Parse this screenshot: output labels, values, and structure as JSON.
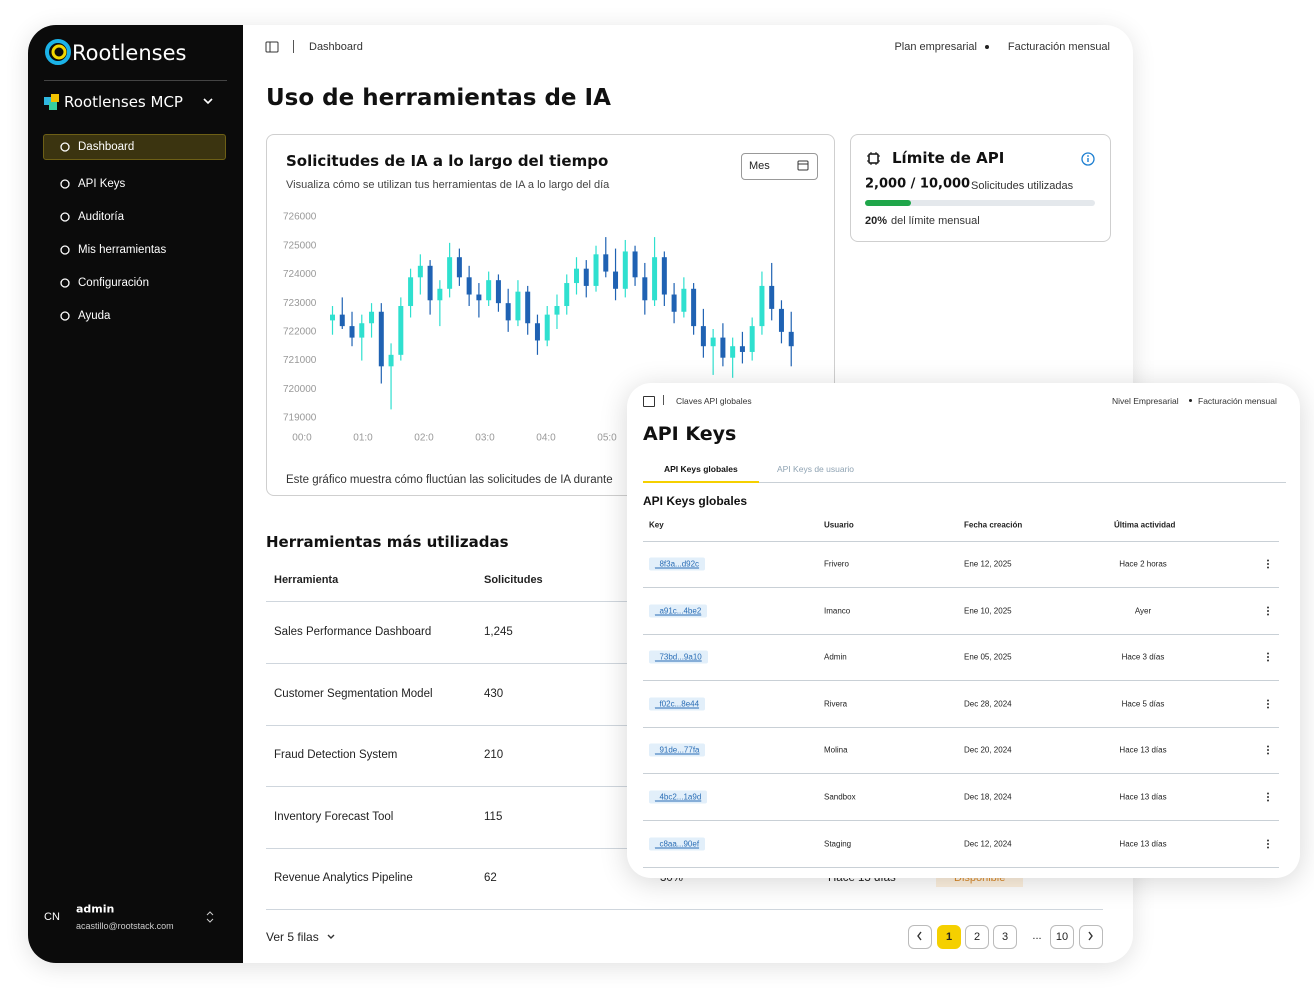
{
  "brand": {
    "name": "Rootlenses",
    "workspace": "Rootlenses MCP"
  },
  "sidebar": {
    "nav": [
      "Dashboard",
      "API Keys",
      "Auditoría",
      "Mis herramientas",
      "Configuración",
      "Ayuda"
    ],
    "user": {
      "initials": "CN",
      "name": "admin",
      "email": "acastillo@rootstack.com"
    }
  },
  "header": {
    "breadcrumb": "Dashboard",
    "plan": "Plan empresarial",
    "billing": "Facturación mensual",
    "title": "Uso de herramientas de IA"
  },
  "chart_card": {
    "period": "Mes"
  },
  "chart_data": {
    "type": "candlestick",
    "title": "Solicitudes de IA a lo largo del tiempo",
    "subtitle": "Visualiza cómo se utilizan tus herramientas de IA a lo largo del día",
    "note": "Este gráfico muestra cómo fluctúan las solicitudes de IA durante",
    "x": [
      0.5,
      0.66,
      0.82,
      0.98,
      1.14,
      1.3,
      1.46,
      1.62,
      1.78,
      1.94,
      2.1,
      2.26,
      2.42,
      2.58,
      2.74,
      2.9,
      3.06,
      3.22,
      3.38,
      3.54,
      3.7,
      3.86,
      4.02,
      4.18,
      4.34,
      4.5,
      4.66,
      4.82,
      4.98,
      5.14,
      5.3,
      5.46,
      5.62,
      5.78,
      5.94,
      6.1,
      6.26,
      6.42,
      6.58,
      6.74,
      6.9,
      7.06,
      7.22,
      7.38,
      7.54,
      7.7,
      7.86,
      8.02
    ],
    "open": [
      722400,
      722600,
      722200,
      721800,
      722300,
      722700,
      720800,
      721200,
      722900,
      723900,
      724300,
      723100,
      723500,
      724600,
      723900,
      723300,
      723100,
      723800,
      723000,
      722400,
      723400,
      722300,
      721700,
      722600,
      722900,
      723700,
      724200,
      723600,
      724700,
      724100,
      723500,
      724800,
      723900,
      723100,
      724600,
      723300,
      722700,
      723500,
      722200,
      721500,
      721800,
      721100,
      721500,
      721300,
      722200,
      723600,
      722800,
      722000
    ],
    "high": [
      722900,
      723200,
      722700,
      722600,
      723000,
      723000,
      721600,
      723200,
      724200,
      724700,
      724500,
      723800,
      725100,
      724900,
      724300,
      723700,
      724100,
      724000,
      723500,
      723800,
      723600,
      722600,
      722900,
      723300,
      724000,
      724600,
      724500,
      725000,
      725300,
      724900,
      725200,
      725000,
      724400,
      725300,
      724800,
      723700,
      723900,
      723700,
      722800,
      722100,
      722300,
      721800,
      722000,
      722500,
      724100,
      724400,
      723100,
      722700
    ],
    "low": [
      721900,
      722100,
      721500,
      721000,
      721800,
      720200,
      719300,
      721000,
      722500,
      723300,
      722600,
      722200,
      723200,
      723600,
      722900,
      722500,
      722900,
      722700,
      722000,
      722200,
      721900,
      721200,
      721500,
      722100,
      722600,
      723300,
      723200,
      723400,
      723900,
      723100,
      723200,
      723600,
      722600,
      722900,
      722900,
      722300,
      722500,
      721900,
      721100,
      720500,
      720800,
      720400,
      720900,
      721000,
      721900,
      722400,
      721600,
      720800
    ],
    "close": [
      722600,
      722200,
      721800,
      722300,
      722700,
      720800,
      721200,
      722900,
      723900,
      724300,
      723100,
      723500,
      724600,
      723900,
      723300,
      723100,
      723800,
      723000,
      722400,
      723400,
      722300,
      721700,
      722600,
      722900,
      723700,
      724200,
      723600,
      724700,
      724100,
      723500,
      724800,
      723900,
      723100,
      724600,
      723300,
      722700,
      723500,
      722200,
      721500,
      721800,
      721100,
      721500,
      721300,
      722200,
      723600,
      722800,
      722000,
      721500
    ],
    "up_color": "#2fe0cf",
    "down_color": "#1f62b3",
    "xlim": [
      0,
      8.3
    ],
    "xticks": [
      {
        "value": 0,
        "label": "00:0"
      },
      {
        "value": 1,
        "label": "01:0"
      },
      {
        "value": 2,
        "label": "02:0"
      },
      {
        "value": 3,
        "label": "03:0"
      },
      {
        "value": 4,
        "label": "04:0"
      },
      {
        "value": 5,
        "label": "05:0"
      }
    ],
    "ylim": [
      719000,
      726000
    ],
    "yticks": [
      719000,
      720000,
      721000,
      722000,
      723000,
      724000,
      725000,
      726000
    ],
    "grid": false
  },
  "api_limit": {
    "title": "Límite de API",
    "usage": "2,000 / 10,000",
    "usage_label": "Solicitudes utilizadas",
    "percent": 20,
    "percent_label": "20%",
    "percent_text": "del límite mensual",
    "bar_color": "#1fa64a"
  },
  "tools_table": {
    "title": "Herramientas más utilizadas",
    "headers": [
      "Herramienta",
      "Solicitudes"
    ],
    "rows": [
      [
        "Sales Performance Dashboard",
        "1,245"
      ],
      [
        "Customer Segmentation Model",
        "430"
      ],
      [
        "Fraud Detection System",
        "210"
      ],
      [
        "Inventory Forecast Tool",
        "115"
      ],
      [
        "Revenue Analytics Pipeline",
        "62",
        "30%",
        "Hace 13 días",
        "Disponible"
      ]
    ],
    "page_size_label": "Ver 5 filas",
    "pages": [
      "1",
      "2",
      "3",
      "...",
      "10"
    ]
  },
  "api_keys_panel": {
    "breadcrumb": "Claves API globales",
    "plan": "Nivel Empresarial",
    "billing": "Facturación mensual",
    "title": "API Keys",
    "tabs": [
      "API Keys globales",
      "API Keys de usuario"
    ],
    "section": "API Keys globales",
    "headers": [
      "Key",
      "Usuario",
      "Fecha creación",
      "Última actividad"
    ],
    "rows": [
      [
        "_8f3a...d92c",
        "Frivero",
        "Ene 12, 2025",
        "Hace 2 horas"
      ],
      [
        "_a91c...4be2",
        "Imanco",
        "Ene 10, 2025",
        "Ayer"
      ],
      [
        "_73bd...9a10",
        "Admin",
        "Ene 05, 2025",
        "Hace 3 días"
      ],
      [
        "_f02c...8e44",
        "Rivera",
        "Dec 28, 2024",
        "Hace 5 días"
      ],
      [
        "_91de...77fa",
        "Molina",
        "Dec 20, 2024",
        "Hace 13 días"
      ],
      [
        "_4bc2...1a9d",
        "Sandbox",
        "Dec 18, 2024",
        "Hace 13 días"
      ],
      [
        "_c8aa...90ef",
        "Staging",
        "Dec 12, 2024",
        "Hace 13 días"
      ]
    ]
  }
}
